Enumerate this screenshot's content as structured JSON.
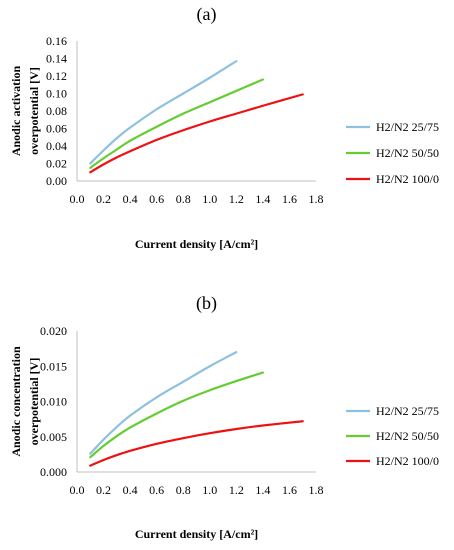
{
  "chart_data": [
    {
      "type": "line",
      "title": "(a)",
      "xlabel": "Current density [A/cm²]",
      "ylabel": [
        "Anodic activation",
        "overpotential [V]"
      ],
      "xlim": [
        0.0,
        1.8
      ],
      "ylim": [
        0.0,
        0.16
      ],
      "xticks": [
        "0.0",
        "0.2",
        "0.4",
        "0.6",
        "0.8",
        "1.0",
        "1.2",
        "1.4",
        "1.6",
        "1.8"
      ],
      "yticks": [
        "0.00",
        "0.02",
        "0.04",
        "0.06",
        "0.08",
        "0.10",
        "0.12",
        "0.14",
        "0.16"
      ],
      "grid": false,
      "legend_position": "right",
      "series": [
        {
          "name": "H2/N2 25/75",
          "color": "#8ec1e0",
          "x": [
            0.1,
            0.2,
            0.3,
            0.4,
            0.6,
            0.8,
            1.0,
            1.2
          ],
          "values": [
            0.02,
            0.035,
            0.049,
            0.061,
            0.082,
            0.1,
            0.118,
            0.137
          ]
        },
        {
          "name": "H2/N2 50/50",
          "color": "#66cc33",
          "x": [
            0.1,
            0.2,
            0.3,
            0.4,
            0.6,
            0.8,
            1.0,
            1.2,
            1.4
          ],
          "values": [
            0.015,
            0.026,
            0.036,
            0.046,
            0.062,
            0.077,
            0.09,
            0.103,
            0.116
          ]
        },
        {
          "name": "H2/N2 100/0",
          "color": "#ee1111",
          "x": [
            0.1,
            0.2,
            0.3,
            0.4,
            0.6,
            0.8,
            1.0,
            1.2,
            1.4,
            1.7
          ],
          "values": [
            0.01,
            0.019,
            0.027,
            0.034,
            0.047,
            0.058,
            0.068,
            0.077,
            0.086,
            0.099
          ]
        }
      ]
    },
    {
      "type": "line",
      "title": "(b)",
      "xlabel": "Current density [A/cm²]",
      "ylabel": [
        "Anodic concentration",
        "overpotential [V]"
      ],
      "xlim": [
        0.0,
        1.8
      ],
      "ylim": [
        0.0,
        0.02
      ],
      "xticks": [
        "0.0",
        "0.2",
        "0.4",
        "0.6",
        "0.8",
        "1.0",
        "1.2",
        "1.4",
        "1.6",
        "1.8"
      ],
      "yticks": [
        "0.000",
        "0.005",
        "0.010",
        "0.015",
        "0.020"
      ],
      "grid": false,
      "legend_position": "right",
      "series": [
        {
          "name": "H2/N2 25/75",
          "color": "#8ec1e0",
          "x": [
            0.1,
            0.2,
            0.3,
            0.4,
            0.6,
            0.8,
            1.0,
            1.2
          ],
          "values": [
            0.0026,
            0.0046,
            0.0064,
            0.008,
            0.0106,
            0.0128,
            0.015,
            0.017
          ]
        },
        {
          "name": "H2/N2 50/50",
          "color": "#66cc33",
          "x": [
            0.1,
            0.2,
            0.3,
            0.4,
            0.6,
            0.8,
            1.0,
            1.2,
            1.4
          ],
          "values": [
            0.0021,
            0.0037,
            0.0051,
            0.0063,
            0.0083,
            0.0101,
            0.0116,
            0.0129,
            0.0141
          ]
        },
        {
          "name": "H2/N2 100/0",
          "color": "#ee1111",
          "x": [
            0.1,
            0.2,
            0.3,
            0.4,
            0.6,
            0.8,
            1.0,
            1.2,
            1.4,
            1.7
          ],
          "values": [
            0.0009,
            0.0017,
            0.0024,
            0.003,
            0.004,
            0.0048,
            0.0055,
            0.0061,
            0.0066,
            0.0072
          ]
        }
      ]
    }
  ]
}
